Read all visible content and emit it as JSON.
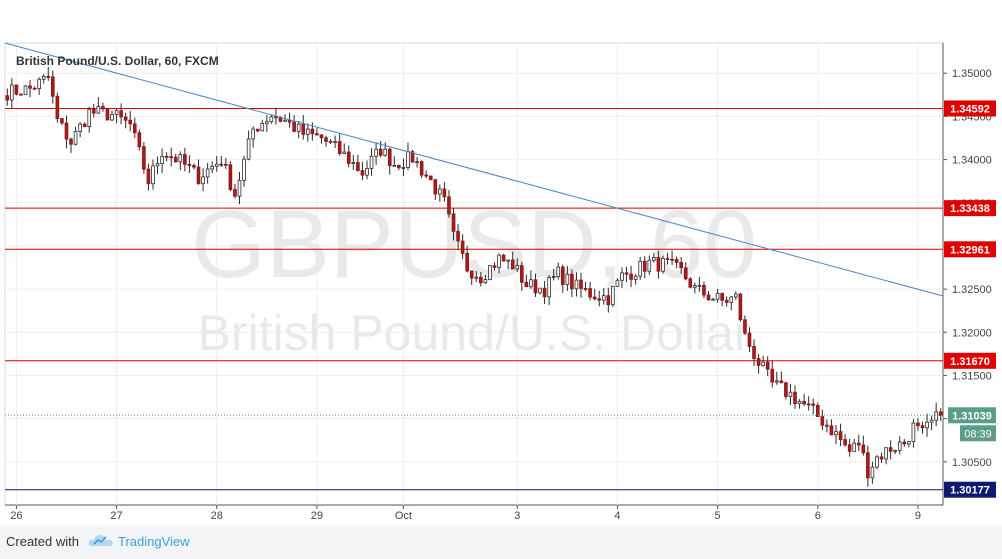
{
  "chart_data": {
    "type": "candlestick",
    "title": "British Pound/U.S. Dollar, 60, FXCM",
    "watermark_symbol": "GBPUSD, 60",
    "watermark_name": "British Pound/U.S. Dollar",
    "ylim": [
      1.3,
      1.3535
    ],
    "y_ticks": [
      "1.35000",
      "1.34500",
      "1.34000",
      "1.33500",
      "1.33000",
      "1.32500",
      "1.32000",
      "1.31500",
      "1.31000",
      "1.30500"
    ],
    "y_tick_values": [
      1.35,
      1.345,
      1.34,
      1.335,
      1.33,
      1.325,
      1.32,
      1.315,
      1.31,
      1.305
    ],
    "x_ticks": [
      "26",
      "27",
      "28",
      "29",
      "Oct",
      "3",
      "4",
      "5",
      "6",
      "9"
    ],
    "x_tick_bars": [
      2,
      24,
      46,
      68,
      87,
      112,
      134,
      156,
      178,
      200
    ],
    "bar_count": 206,
    "levels": [
      {
        "label": "1.34592",
        "value": 1.34592,
        "color": "#e00000"
      },
      {
        "label": "1.33438",
        "value": 1.33438,
        "color": "#e00000"
      },
      {
        "label": "1.32961",
        "value": 1.32961,
        "color": "#e00000"
      },
      {
        "label": "1.31670",
        "value": 1.3167,
        "color": "#e00000"
      },
      {
        "label": "1.30177",
        "value": 1.30177,
        "color": "#0d1a6e"
      }
    ],
    "trendline": {
      "start": {
        "bar": 0,
        "value": 1.3535
      },
      "end": {
        "bar": 206,
        "value": 1.3242
      },
      "color": "#4a86c8"
    },
    "last_price": {
      "label": "1.31039",
      "value": 1.31039,
      "countdown": "08:39",
      "color": "#5b9d8a"
    },
    "anchors": [
      [
        0,
        1.3478
      ],
      [
        5,
        1.3482
      ],
      [
        9,
        1.3495
      ],
      [
        11,
        1.3445
      ],
      [
        14,
        1.342
      ],
      [
        18,
        1.3455
      ],
      [
        23,
        1.3452
      ],
      [
        27,
        1.344
      ],
      [
        31,
        1.3375
      ],
      [
        34,
        1.341
      ],
      [
        38,
        1.3398
      ],
      [
        42,
        1.338
      ],
      [
        47,
        1.34
      ],
      [
        50,
        1.336
      ],
      [
        54,
        1.3435
      ],
      [
        58,
        1.3452
      ],
      [
        61,
        1.3445
      ],
      [
        65,
        1.343
      ],
      [
        69,
        1.3425
      ],
      [
        74,
        1.3405
      ],
      [
        78,
        1.3385
      ],
      [
        82,
        1.3412
      ],
      [
        85,
        1.3395
      ],
      [
        89,
        1.3402
      ],
      [
        93,
        1.3375
      ],
      [
        96,
        1.335
      ],
      [
        98,
        1.331
      ],
      [
        101,
        1.3275
      ],
      [
        104,
        1.3265
      ],
      [
        108,
        1.3285
      ],
      [
        111,
        1.3278
      ],
      [
        114,
        1.3255
      ],
      [
        118,
        1.325
      ],
      [
        121,
        1.3268
      ],
      [
        125,
        1.3252
      ],
      [
        128,
        1.3245
      ],
      [
        132,
        1.324
      ],
      [
        135,
        1.3265
      ],
      [
        138,
        1.3272
      ],
      [
        141,
        1.328
      ],
      [
        145,
        1.3278
      ],
      [
        148,
        1.327
      ],
      [
        151,
        1.325
      ],
      [
        155,
        1.324
      ],
      [
        157,
        1.3236
      ],
      [
        160,
        1.324
      ],
      [
        162,
        1.3195
      ],
      [
        165,
        1.3165
      ],
      [
        168,
        1.314
      ],
      [
        172,
        1.3128
      ],
      [
        176,
        1.3112
      ],
      [
        179,
        1.3098
      ],
      [
        182,
        1.3082
      ],
      [
        185,
        1.3062
      ],
      [
        187,
        1.3072
      ],
      [
        189,
        1.304
      ],
      [
        191,
        1.3055
      ],
      [
        194,
        1.3066
      ],
      [
        197,
        1.3072
      ],
      [
        199,
        1.309
      ],
      [
        201,
        1.3082
      ],
      [
        203,
        1.3095
      ],
      [
        205,
        1.3104
      ]
    ]
  }
}
